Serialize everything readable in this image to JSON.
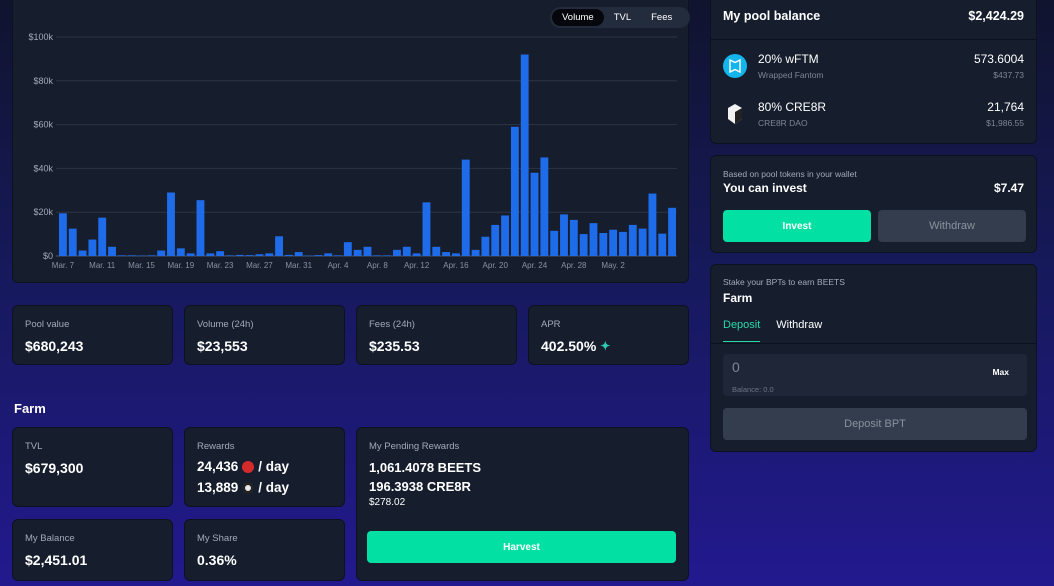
{
  "chart_toggle": {
    "options": [
      "Volume",
      "TVL",
      "Fees"
    ],
    "active": "Volume"
  },
  "chart_data": {
    "type": "bar",
    "ylim": [
      0,
      100000
    ],
    "y_ticks": [
      "$0",
      "$20k",
      "$40k",
      "$60k",
      "$80k",
      "$100k"
    ],
    "x_tick_labels": [
      "Mar. 7",
      "Mar. 11",
      "Mar. 15",
      "Mar. 19",
      "Mar. 23",
      "Mar. 27",
      "Mar. 31",
      "Apr. 4",
      "Apr. 8",
      "Apr. 12",
      "Apr. 16",
      "Apr. 20",
      "Apr. 24",
      "Apr. 28",
      "May. 2"
    ],
    "values": [
      19500,
      12500,
      2500,
      7500,
      17500,
      4200,
      300,
      300,
      200,
      300,
      2500,
      29000,
      3500,
      1200,
      25500,
      1200,
      2200,
      300,
      500,
      400,
      800,
      1200,
      9000,
      500,
      1800,
      200,
      400,
      1200,
      300,
      6300,
      2800,
      4200,
      300,
      300,
      2800,
      4200,
      1200,
      24500,
      4200,
      1800,
      1200,
      44000,
      2800,
      8800,
      14200,
      18500,
      59000,
      92000,
      38000,
      45000,
      11500,
      19000,
      16500,
      10000,
      15000,
      10500,
      12000,
      11000,
      14200,
      12500,
      28500,
      10200,
      22000
    ],
    "grid": true,
    "color": "#1f6cea"
  },
  "stats": {
    "pool_value": {
      "label": "Pool value",
      "value": "$680,243"
    },
    "volume": {
      "label": "Volume (24h)",
      "value": "$23,553"
    },
    "fees": {
      "label": "Fees (24h)",
      "value": "$235.53"
    },
    "apr": {
      "label": "APR",
      "value": "402.50%",
      "icon": "sparkle-icon"
    }
  },
  "farm": {
    "title": "Farm",
    "tvl": {
      "label": "TVL",
      "value": "$679,300"
    },
    "rewards": {
      "label": "Rewards",
      "line1_amount": "24,436",
      "line1_unit": "/ day",
      "line2_amount": "13,889",
      "line2_unit": "/ day"
    },
    "my_balance": {
      "label": "My Balance",
      "value": "$2,451.01"
    },
    "my_share": {
      "label": "My Share",
      "value": "0.36%"
    },
    "pending": {
      "label": "My Pending Rewards",
      "beets": "1,061.4078 BEETS",
      "cre8r": "196.3938 CRE8R",
      "usd": "$278.02",
      "harvest_label": "Harvest"
    },
    "colors": {
      "harvest": "#02e0a3"
    }
  },
  "pool_balance": {
    "title": "My pool balance",
    "total": "$2,424.29",
    "tokens": [
      {
        "name": "20% wFTM",
        "sub": "Wrapped Fantom",
        "amount": "573.6004",
        "usd": "$437.73",
        "icon": "fantom-icon"
      },
      {
        "name": "80% CRE8R",
        "sub": "CRE8R DAO",
        "amount": "21,764",
        "usd": "$1,986.55",
        "icon": "cre8r-icon"
      }
    ]
  },
  "invest": {
    "hint": "Based on pool tokens in your wallet",
    "title": "You can invest",
    "amount": "$7.47",
    "invest_label": "Invest",
    "withdraw_label": "Withdraw"
  },
  "stake": {
    "hint": "Stake your BPTs to earn BEETS",
    "title": "Farm",
    "tabs": [
      "Deposit",
      "Withdraw"
    ],
    "active_tab": "Deposit",
    "input_value": "0",
    "balance_text": "Balance: 0.0",
    "max_label": "Max",
    "deposit_label": "Deposit BPT"
  }
}
